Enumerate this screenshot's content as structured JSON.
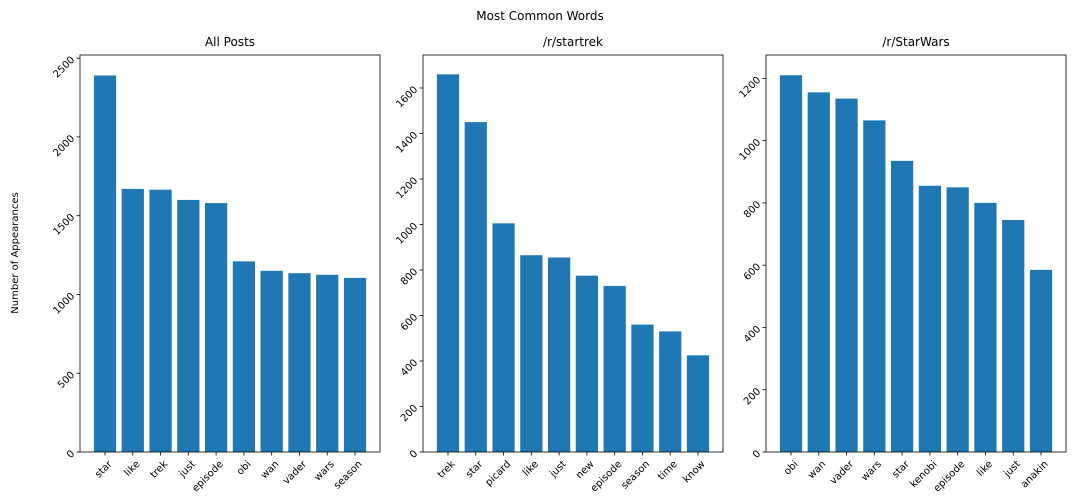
{
  "figure_title": "Most Common Words",
  "ylabel": "Number of Appearances",
  "bar_color": "#1f77b4",
  "chart_data": [
    {
      "type": "bar",
      "title": "All Posts",
      "categories": [
        "star",
        "like",
        "trek",
        "just",
        "episode",
        "obi",
        "wan",
        "vader",
        "wars",
        "season"
      ],
      "values": [
        2390,
        1670,
        1665,
        1600,
        1580,
        1210,
        1150,
        1135,
        1125,
        1105
      ],
      "ylim": [
        0,
        2520
      ],
      "yticks": [
        0,
        500,
        1000,
        1500,
        2000,
        2500
      ]
    },
    {
      "type": "bar",
      "title": "/r/startrek",
      "categories": [
        "trek",
        "star",
        "picard",
        "like",
        "just",
        "new",
        "episode",
        "season",
        "time",
        "know"
      ],
      "values": [
        1660,
        1450,
        1005,
        865,
        855,
        775,
        730,
        560,
        530,
        425
      ],
      "ylim": [
        0,
        1745
      ],
      "yticks": [
        0,
        200,
        400,
        600,
        800,
        1000,
        1200,
        1400,
        1600
      ]
    },
    {
      "type": "bar",
      "title": "/r/StarWars",
      "categories": [
        "obi",
        "wan",
        "vader",
        "wars",
        "star",
        "kenobi",
        "episode",
        "like",
        "just",
        "anakin"
      ],
      "values": [
        1210,
        1155,
        1135,
        1065,
        935,
        855,
        850,
        800,
        745,
        585
      ],
      "ylim": [
        0,
        1275
      ],
      "yticks": [
        0,
        200,
        400,
        600,
        800,
        1000,
        1200
      ]
    }
  ]
}
